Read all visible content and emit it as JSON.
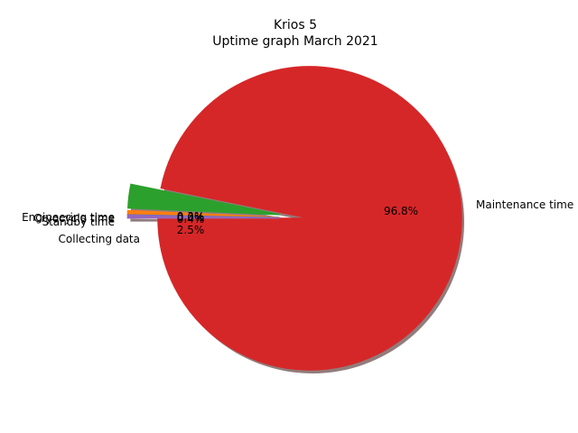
{
  "chart_data": {
    "type": "pie",
    "title": "Krios 5",
    "subtitle": "Uptime graph March 2021",
    "slices": [
      {
        "label": "Maintenance time",
        "value": 96.8,
        "pct_label": "96.8%",
        "color": "#d62728",
        "exploded": false
      },
      {
        "label": "Collecting data",
        "value": 2.5,
        "pct_label": "2.5%",
        "color": "#2ca02c",
        "exploded": true
      },
      {
        "label": "Standby time",
        "value": 0.4,
        "pct_label": "0.4%",
        "color": "#ff7f0e",
        "exploded": true
      },
      {
        "label": "Cryocycle time",
        "value": 0.0,
        "pct_label": "0.0%",
        "color": "#1f77b4",
        "exploded": true
      },
      {
        "label": "Engineering time",
        "value": 0.3,
        "pct_label": "0.3%",
        "color": "#9467bd",
        "exploded": true
      }
    ],
    "shadow": true
  }
}
